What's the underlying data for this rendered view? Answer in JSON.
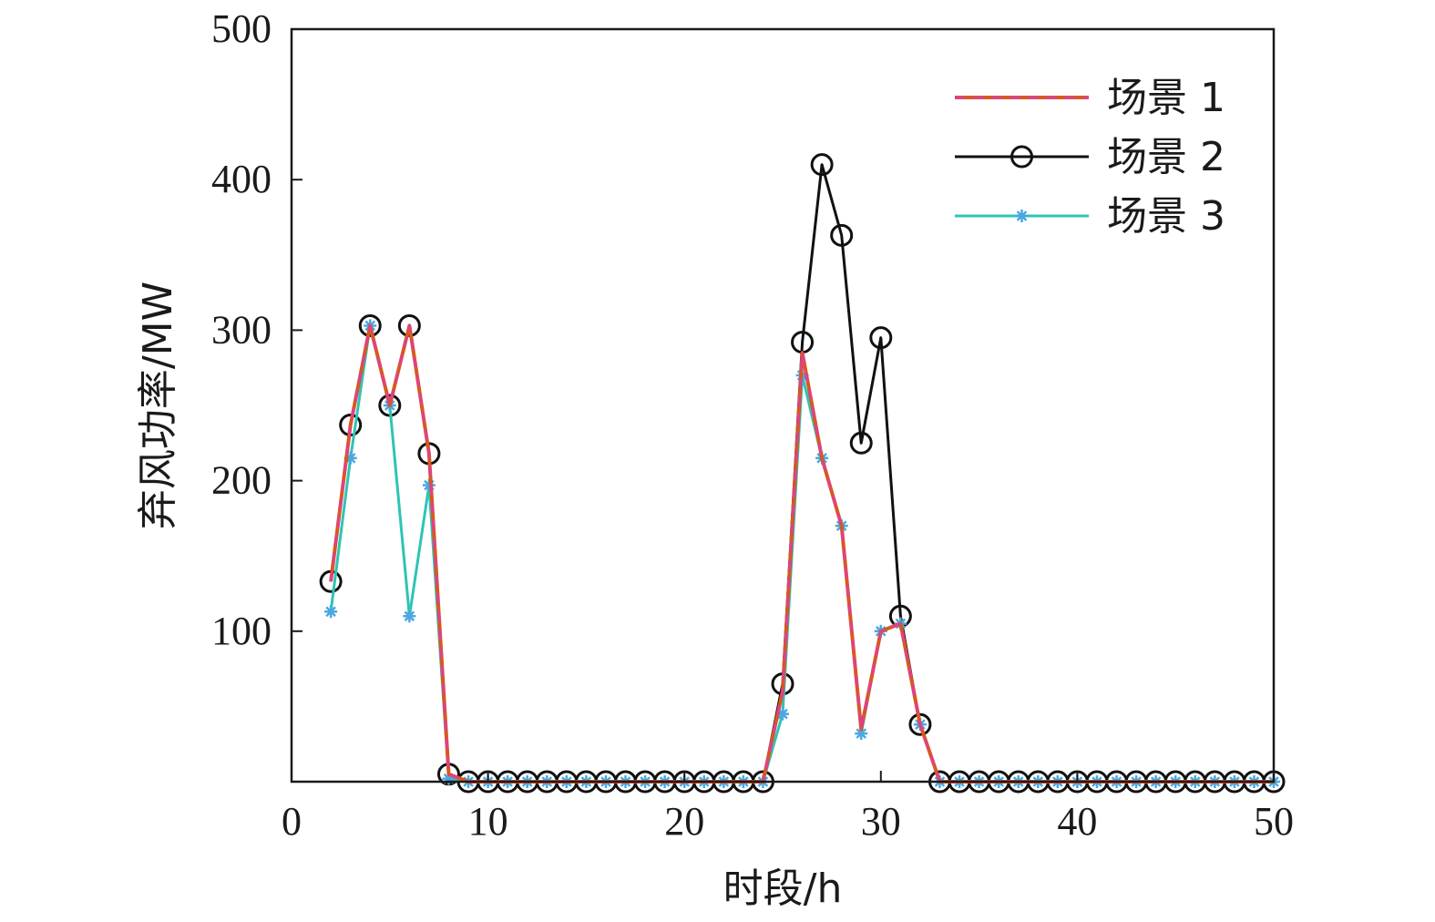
{
  "chart_data": {
    "type": "line",
    "title": "",
    "xlabel": "时段/h",
    "ylabel": "弃风功率/MW",
    "xlim": [
      0,
      50
    ],
    "ylim": [
      0,
      500
    ],
    "xticks": [
      0,
      10,
      20,
      30,
      40,
      50
    ],
    "yticks": [
      100,
      200,
      300,
      400,
      500
    ],
    "grid": false,
    "legend_position": "top-right",
    "x": [
      2,
      3,
      4,
      5,
      6,
      7,
      8,
      9,
      10,
      11,
      12,
      13,
      14,
      15,
      16,
      17,
      18,
      19,
      20,
      21,
      22,
      23,
      24,
      25,
      26,
      27,
      28,
      29,
      30,
      31,
      32,
      33,
      34,
      35,
      36,
      37,
      38,
      39,
      40,
      41,
      42,
      43,
      44,
      45,
      46,
      47,
      48,
      49,
      50
    ],
    "series": [
      {
        "name": "场景 1",
        "color": "#d9581e",
        "accent_color": "#e0408a",
        "line_style": "dashed",
        "marker": "none",
        "values": [
          133,
          237,
          303,
          250,
          303,
          218,
          5,
          0,
          0,
          0,
          0,
          0,
          0,
          0,
          0,
          0,
          0,
          0,
          0,
          0,
          0,
          0,
          0,
          60,
          285,
          215,
          170,
          35,
          100,
          105,
          38,
          0,
          0,
          0,
          0,
          0,
          0,
          0,
          0,
          0,
          0,
          0,
          0,
          0,
          0,
          0,
          0,
          0,
          0
        ]
      },
      {
        "name": "场景 2",
        "color": "#111111",
        "line_style": "solid",
        "marker": "circle",
        "values": [
          133,
          237,
          303,
          250,
          303,
          218,
          5,
          0,
          0,
          0,
          0,
          0,
          0,
          0,
          0,
          0,
          0,
          0,
          0,
          0,
          0,
          0,
          0,
          65,
          292,
          410,
          363,
          225,
          295,
          110,
          38,
          0,
          0,
          0,
          0,
          0,
          0,
          0,
          0,
          0,
          0,
          0,
          0,
          0,
          0,
          0,
          0,
          0,
          0
        ]
      },
      {
        "name": "场景 3",
        "color": "#2ec4b6",
        "marker_color": "#4aa8e0",
        "line_style": "solid",
        "marker": "star",
        "values": [
          113,
          215,
          303,
          250,
          110,
          197,
          2,
          0,
          0,
          0,
          0,
          0,
          0,
          0,
          0,
          0,
          0,
          0,
          0,
          0,
          0,
          0,
          0,
          45,
          270,
          215,
          170,
          32,
          100,
          105,
          38,
          0,
          0,
          0,
          0,
          0,
          0,
          0,
          0,
          0,
          0,
          0,
          0,
          0,
          0,
          0,
          0,
          0,
          0
        ]
      }
    ]
  }
}
